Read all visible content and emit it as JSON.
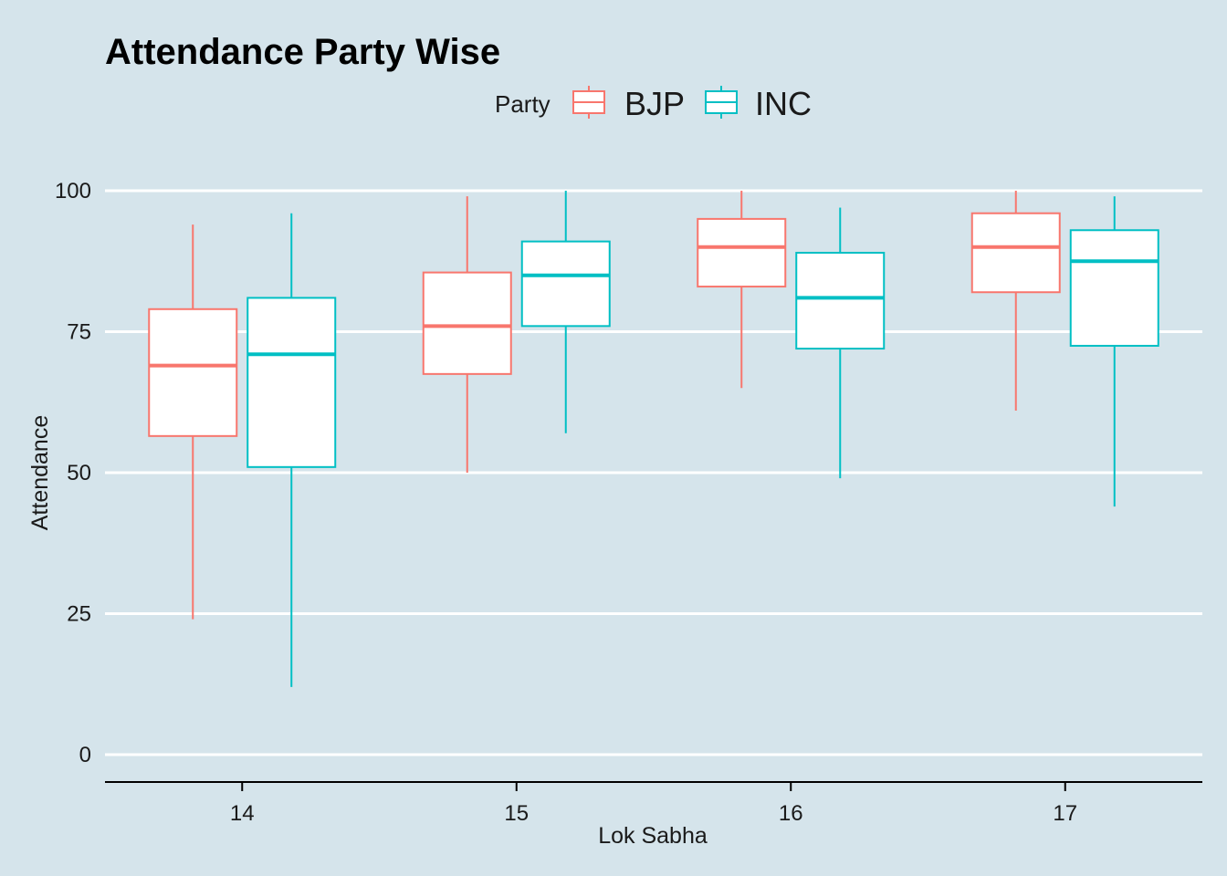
{
  "chart_data": {
    "type": "boxplot",
    "title": "Attendance Party Wise",
    "xlabel": "Lok Sabha",
    "ylabel": "Attendance",
    "categories": [
      "14",
      "15",
      "16",
      "17"
    ],
    "ylim": [
      0,
      100
    ],
    "yticks": [
      0,
      25,
      50,
      75,
      100
    ],
    "grid": true,
    "legend": {
      "title": "Party",
      "position": "top"
    },
    "series": [
      {
        "name": "BJP",
        "color": "#f8766d",
        "boxes": [
          {
            "min": 24,
            "q1": 56.5,
            "median": 69,
            "q3": 79,
            "max": 94
          },
          {
            "min": 50,
            "q1": 67.5,
            "median": 76,
            "q3": 85.5,
            "max": 99
          },
          {
            "min": 65,
            "q1": 83,
            "median": 90,
            "q3": 95,
            "max": 100
          },
          {
            "min": 61,
            "q1": 82,
            "median": 90,
            "q3": 96,
            "max": 100
          }
        ]
      },
      {
        "name": "INC",
        "color": "#00bfc4",
        "boxes": [
          {
            "min": 12,
            "q1": 51,
            "median": 71,
            "q3": 81,
            "max": 96
          },
          {
            "min": 57,
            "q1": 76,
            "median": 85,
            "q3": 91,
            "max": 100
          },
          {
            "min": 49,
            "q1": 72,
            "median": 81,
            "q3": 89,
            "max": 97
          },
          {
            "min": 44,
            "q1": 72.5,
            "median": 87.5,
            "q3": 93,
            "max": 99
          }
        ]
      }
    ]
  }
}
